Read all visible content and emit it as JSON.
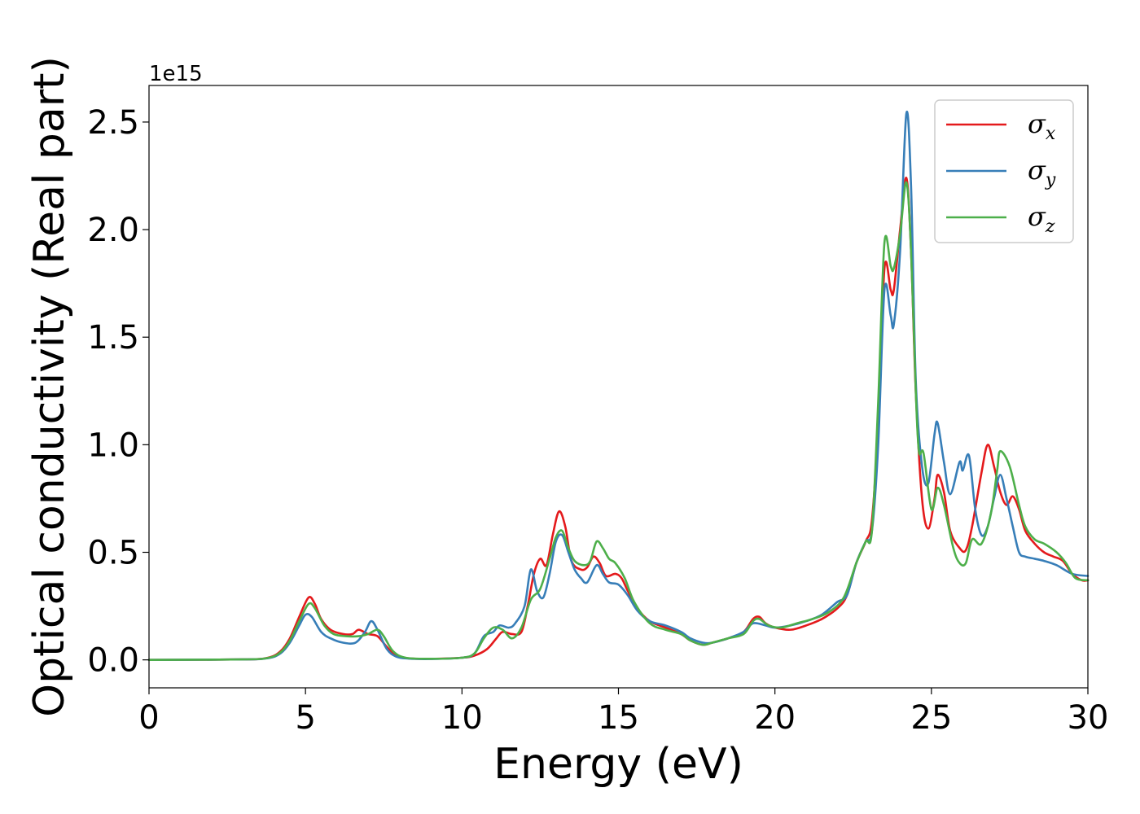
{
  "chart_data": {
    "type": "line",
    "xlabel": "Energy (eV)",
    "ylabel": "Optical conductivity (Real part)",
    "y_offset_text": "1e15",
    "xlim": [
      0,
      30
    ],
    "ylim": [
      -0.13,
      2.67
    ],
    "x_ticks": [
      0,
      5,
      10,
      15,
      20,
      25,
      30
    ],
    "x_tick_labels": [
      "0",
      "5",
      "10",
      "15",
      "20",
      "25",
      "30"
    ],
    "y_ticks": [
      0.0,
      0.5,
      1.0,
      1.5,
      2.0,
      2.5
    ],
    "y_tick_labels": [
      "0.0",
      "0.5",
      "1.0",
      "1.5",
      "2.0",
      "2.5"
    ],
    "grid": false,
    "legend_position": "top-right",
    "series": [
      {
        "name": "σx",
        "symbol": "σ",
        "subscript": "x",
        "color": "#e41a1c",
        "points": [
          [
            0,
            0
          ],
          [
            3,
            0.002
          ],
          [
            3.8,
            0.01
          ],
          [
            4.2,
            0.04
          ],
          [
            4.5,
            0.1
          ],
          [
            4.8,
            0.2
          ],
          [
            5.1,
            0.29
          ],
          [
            5.3,
            0.26
          ],
          [
            5.5,
            0.19
          ],
          [
            5.8,
            0.14
          ],
          [
            6.2,
            0.12
          ],
          [
            6.5,
            0.12
          ],
          [
            6.7,
            0.14
          ],
          [
            7.0,
            0.12
          ],
          [
            7.3,
            0.11
          ],
          [
            7.6,
            0.06
          ],
          [
            7.9,
            0.02
          ],
          [
            8.3,
            0.007
          ],
          [
            9,
            0.005
          ],
          [
            10,
            0.01
          ],
          [
            10.4,
            0.02
          ],
          [
            10.8,
            0.05
          ],
          [
            11.1,
            0.1
          ],
          [
            11.3,
            0.13
          ],
          [
            11.6,
            0.12
          ],
          [
            11.9,
            0.13
          ],
          [
            12.1,
            0.25
          ],
          [
            12.3,
            0.4
          ],
          [
            12.5,
            0.47
          ],
          [
            12.7,
            0.44
          ],
          [
            12.9,
            0.58
          ],
          [
            13.1,
            0.69
          ],
          [
            13.3,
            0.62
          ],
          [
            13.5,
            0.46
          ],
          [
            13.8,
            0.42
          ],
          [
            14.0,
            0.43
          ],
          [
            14.2,
            0.48
          ],
          [
            14.4,
            0.45
          ],
          [
            14.6,
            0.39
          ],
          [
            14.9,
            0.4
          ],
          [
            15.1,
            0.38
          ],
          [
            15.3,
            0.32
          ],
          [
            15.6,
            0.24
          ],
          [
            16.0,
            0.18
          ],
          [
            16.5,
            0.15
          ],
          [
            17.0,
            0.12
          ],
          [
            17.3,
            0.09
          ],
          [
            17.7,
            0.07
          ],
          [
            18.0,
            0.08
          ],
          [
            18.5,
            0.1
          ],
          [
            19.0,
            0.13
          ],
          [
            19.3,
            0.19
          ],
          [
            19.5,
            0.2
          ],
          [
            19.7,
            0.17
          ],
          [
            20.0,
            0.15
          ],
          [
            20.5,
            0.14
          ],
          [
            21.0,
            0.16
          ],
          [
            21.5,
            0.19
          ],
          [
            22.0,
            0.24
          ],
          [
            22.3,
            0.3
          ],
          [
            22.6,
            0.45
          ],
          [
            22.9,
            0.55
          ],
          [
            23.1,
            0.65
          ],
          [
            23.3,
            1.1
          ],
          [
            23.5,
            1.82
          ],
          [
            23.7,
            1.72
          ],
          [
            23.8,
            1.72
          ],
          [
            24.0,
            2.0
          ],
          [
            24.2,
            2.24
          ],
          [
            24.35,
            1.9
          ],
          [
            24.5,
            1.25
          ],
          [
            24.7,
            0.75
          ],
          [
            24.9,
            0.61
          ],
          [
            25.1,
            0.75
          ],
          [
            25.2,
            0.86
          ],
          [
            25.4,
            0.78
          ],
          [
            25.6,
            0.6
          ],
          [
            25.9,
            0.52
          ],
          [
            26.1,
            0.51
          ],
          [
            26.3,
            0.62
          ],
          [
            26.6,
            0.87
          ],
          [
            26.8,
            1.0
          ],
          [
            27.0,
            0.9
          ],
          [
            27.2,
            0.78
          ],
          [
            27.4,
            0.72
          ],
          [
            27.6,
            0.76
          ],
          [
            27.8,
            0.7
          ],
          [
            28.0,
            0.6
          ],
          [
            28.3,
            0.54
          ],
          [
            28.6,
            0.5
          ],
          [
            28.9,
            0.48
          ],
          [
            29.2,
            0.46
          ],
          [
            29.5,
            0.4
          ],
          [
            29.8,
            0.37
          ],
          [
            30,
            0.37
          ]
        ]
      },
      {
        "name": "σy",
        "symbol": "σ",
        "subscript": "y",
        "color": "#377eb8",
        "points": [
          [
            0,
            0
          ],
          [
            3,
            0.002
          ],
          [
            3.8,
            0.008
          ],
          [
            4.2,
            0.03
          ],
          [
            4.5,
            0.08
          ],
          [
            4.8,
            0.16
          ],
          [
            5.0,
            0.21
          ],
          [
            5.2,
            0.2
          ],
          [
            5.5,
            0.13
          ],
          [
            5.8,
            0.1
          ],
          [
            6.2,
            0.08
          ],
          [
            6.6,
            0.08
          ],
          [
            6.9,
            0.13
          ],
          [
            7.1,
            0.18
          ],
          [
            7.3,
            0.14
          ],
          [
            7.6,
            0.05
          ],
          [
            7.9,
            0.015
          ],
          [
            8.3,
            0.006
          ],
          [
            9,
            0.004
          ],
          [
            10,
            0.01
          ],
          [
            10.4,
            0.03
          ],
          [
            10.7,
            0.11
          ],
          [
            11.0,
            0.13
          ],
          [
            11.2,
            0.16
          ],
          [
            11.5,
            0.15
          ],
          [
            11.7,
            0.17
          ],
          [
            12.0,
            0.25
          ],
          [
            12.2,
            0.42
          ],
          [
            12.4,
            0.32
          ],
          [
            12.6,
            0.29
          ],
          [
            12.8,
            0.4
          ],
          [
            13.0,
            0.55
          ],
          [
            13.2,
            0.58
          ],
          [
            13.4,
            0.5
          ],
          [
            13.6,
            0.42
          ],
          [
            13.8,
            0.38
          ],
          [
            14.0,
            0.36
          ],
          [
            14.3,
            0.44
          ],
          [
            14.5,
            0.4
          ],
          [
            14.7,
            0.36
          ],
          [
            15.0,
            0.35
          ],
          [
            15.3,
            0.3
          ],
          [
            15.6,
            0.23
          ],
          [
            16.0,
            0.18
          ],
          [
            16.5,
            0.16
          ],
          [
            17.0,
            0.13
          ],
          [
            17.3,
            0.1
          ],
          [
            17.7,
            0.08
          ],
          [
            18.0,
            0.08
          ],
          [
            18.5,
            0.1
          ],
          [
            19.0,
            0.13
          ],
          [
            19.3,
            0.17
          ],
          [
            19.7,
            0.16
          ],
          [
            20.0,
            0.15
          ],
          [
            20.5,
            0.16
          ],
          [
            21.0,
            0.18
          ],
          [
            21.5,
            0.21
          ],
          [
            22.0,
            0.27
          ],
          [
            22.3,
            0.3
          ],
          [
            22.6,
            0.45
          ],
          [
            22.9,
            0.55
          ],
          [
            23.1,
            0.6
          ],
          [
            23.3,
            1.0
          ],
          [
            23.5,
            1.72
          ],
          [
            23.7,
            1.6
          ],
          [
            23.8,
            1.56
          ],
          [
            24.0,
            1.9
          ],
          [
            24.2,
            2.54
          ],
          [
            24.35,
            2.2
          ],
          [
            24.5,
            1.3
          ],
          [
            24.7,
            0.9
          ],
          [
            24.9,
            0.82
          ],
          [
            25.1,
            1.05
          ],
          [
            25.2,
            1.1
          ],
          [
            25.4,
            0.92
          ],
          [
            25.6,
            0.77
          ],
          [
            25.9,
            0.92
          ],
          [
            26.0,
            0.88
          ],
          [
            26.2,
            0.95
          ],
          [
            26.4,
            0.7
          ],
          [
            26.6,
            0.58
          ],
          [
            26.8,
            0.62
          ],
          [
            27.0,
            0.75
          ],
          [
            27.2,
            0.86
          ],
          [
            27.4,
            0.75
          ],
          [
            27.6,
            0.62
          ],
          [
            27.8,
            0.5
          ],
          [
            28.0,
            0.48
          ],
          [
            28.3,
            0.47
          ],
          [
            28.6,
            0.46
          ],
          [
            29.0,
            0.44
          ],
          [
            29.5,
            0.4
          ],
          [
            30,
            0.39
          ]
        ]
      },
      {
        "name": "σz",
        "symbol": "σ",
        "subscript": "z",
        "color": "#4daf4a",
        "points": [
          [
            0,
            0
          ],
          [
            3,
            0.002
          ],
          [
            3.8,
            0.009
          ],
          [
            4.2,
            0.035
          ],
          [
            4.5,
            0.09
          ],
          [
            4.8,
            0.18
          ],
          [
            5.1,
            0.26
          ],
          [
            5.3,
            0.24
          ],
          [
            5.6,
            0.16
          ],
          [
            5.9,
            0.12
          ],
          [
            6.3,
            0.11
          ],
          [
            6.7,
            0.11
          ],
          [
            7.0,
            0.12
          ],
          [
            7.3,
            0.14
          ],
          [
            7.5,
            0.11
          ],
          [
            7.8,
            0.04
          ],
          [
            8.2,
            0.01
          ],
          [
            9,
            0.005
          ],
          [
            10,
            0.01
          ],
          [
            10.4,
            0.03
          ],
          [
            10.7,
            0.1
          ],
          [
            11.0,
            0.15
          ],
          [
            11.3,
            0.14
          ],
          [
            11.6,
            0.1
          ],
          [
            11.9,
            0.15
          ],
          [
            12.2,
            0.28
          ],
          [
            12.5,
            0.33
          ],
          [
            12.8,
            0.47
          ],
          [
            13.0,
            0.57
          ],
          [
            13.2,
            0.6
          ],
          [
            13.4,
            0.52
          ],
          [
            13.6,
            0.46
          ],
          [
            13.9,
            0.44
          ],
          [
            14.1,
            0.46
          ],
          [
            14.3,
            0.55
          ],
          [
            14.5,
            0.52
          ],
          [
            14.7,
            0.47
          ],
          [
            14.9,
            0.45
          ],
          [
            15.2,
            0.38
          ],
          [
            15.5,
            0.27
          ],
          [
            16.0,
            0.17
          ],
          [
            16.5,
            0.14
          ],
          [
            17.0,
            0.12
          ],
          [
            17.3,
            0.09
          ],
          [
            17.7,
            0.07
          ],
          [
            18.0,
            0.08
          ],
          [
            18.5,
            0.1
          ],
          [
            19.0,
            0.12
          ],
          [
            19.3,
            0.18
          ],
          [
            19.5,
            0.19
          ],
          [
            19.8,
            0.16
          ],
          [
            20.2,
            0.15
          ],
          [
            20.7,
            0.17
          ],
          [
            21.2,
            0.19
          ],
          [
            21.7,
            0.22
          ],
          [
            22.2,
            0.29
          ],
          [
            22.6,
            0.45
          ],
          [
            22.9,
            0.55
          ],
          [
            23.1,
            0.6
          ],
          [
            23.3,
            1.2
          ],
          [
            23.5,
            1.94
          ],
          [
            23.7,
            1.83
          ],
          [
            23.8,
            1.82
          ],
          [
            24.0,
            1.98
          ],
          [
            24.2,
            2.22
          ],
          [
            24.35,
            1.9
          ],
          [
            24.5,
            1.25
          ],
          [
            24.6,
            0.97
          ],
          [
            24.75,
            0.96
          ],
          [
            25.0,
            0.7
          ],
          [
            25.2,
            0.8
          ],
          [
            25.4,
            0.72
          ],
          [
            25.7,
            0.52
          ],
          [
            25.9,
            0.45
          ],
          [
            26.1,
            0.45
          ],
          [
            26.3,
            0.56
          ],
          [
            26.6,
            0.54
          ],
          [
            26.9,
            0.68
          ],
          [
            27.1,
            0.88
          ],
          [
            27.2,
            0.97
          ],
          [
            27.5,
            0.9
          ],
          [
            27.8,
            0.72
          ],
          [
            28.0,
            0.62
          ],
          [
            28.3,
            0.56
          ],
          [
            28.6,
            0.54
          ],
          [
            29.0,
            0.5
          ],
          [
            29.3,
            0.45
          ],
          [
            29.6,
            0.38
          ],
          [
            30,
            0.37
          ]
        ]
      }
    ]
  }
}
